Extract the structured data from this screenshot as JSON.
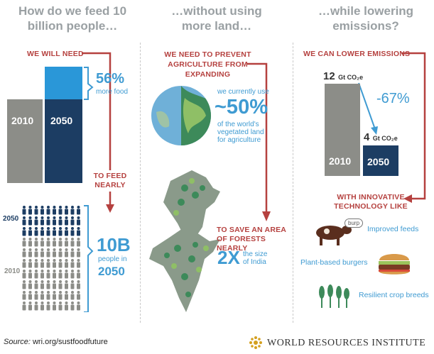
{
  "col1": {
    "header": "How do we feed 10 billion people…",
    "need_label": "WE WILL NEED",
    "pct": "56%",
    "pct_sub": "more food",
    "bar_2010": "2010",
    "bar_2050": "2050",
    "feed_label": "TO FEED NEARLY",
    "people_2050_label": "2050",
    "people_2010_label": "2010",
    "people_big": "10B",
    "people_sub": "people in",
    "people_year": "2050"
  },
  "col2": {
    "header": "…without using more land…",
    "prevent_label": "WE NEED TO PREVENT AGRICULTURE FROM EXPANDING",
    "use_pre": "we currently use",
    "use_pct": "~50%",
    "use_post": "of the world's vegetated land for agriculture",
    "save_label": "TO SAVE AN AREA OF FORESTS NEARLY",
    "save_big": "2X",
    "save_sub": "the size of India"
  },
  "col3": {
    "header": "…while lowering emissions?",
    "lower_label": "WE CAN LOWER EMISSIONS",
    "val_2010": "12",
    "val_2050": "4",
    "unit": "Gt CO₂e",
    "pct": "-67%",
    "bar_2010": "2010",
    "bar_2050": "2050",
    "innov_label": "WITH INNOVATIVE TECHNOLOGY LIKE",
    "burp": "burp",
    "tech_1": "Improved feeds",
    "tech_2": "Plant-based burgers",
    "tech_3": "Resilient crop breeds"
  },
  "footer": {
    "source_label": "Source:",
    "source_url": "wri.org/sustfoodfuture",
    "org": "WORLD RESOURCES INSTITUTE"
  },
  "colors": {
    "navy": "#1c3d63",
    "sky": "#2a97d8",
    "gray": "#8c8d88",
    "red": "#b5413f",
    "blue_text": "#3f9bd2"
  }
}
